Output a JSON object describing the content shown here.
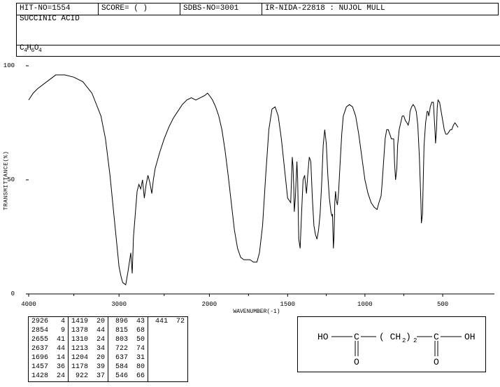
{
  "header": {
    "hit_no": "HIT-NO=1554",
    "score": "SCORE=   (   )",
    "sdbs": "SDBS-NO=3001",
    "ir": "IR-NIDA-22818 : NUJOL MULL",
    "compound": "SUCCINIC ACID",
    "formula": "C4H6O4",
    "formula_html": "C<sub>4</sub>H<sub>6</sub>O<sub>4</sub>"
  },
  "chart": {
    "type": "line",
    "ylabel": "TRANSMITTANCE(%)",
    "xlabel": "WAVENUMBER(-1)",
    "xlim": [
      4000,
      400
    ],
    "ylim": [
      0,
      100
    ],
    "xticks": [
      4000,
      3000,
      2000,
      1500,
      1000,
      500
    ],
    "yticks": [
      0,
      50,
      100
    ],
    "line_color": "#000000",
    "line_width": 1,
    "background_color": "#ffffff",
    "data": [
      [
        4000,
        85
      ],
      [
        3950,
        88
      ],
      [
        3900,
        90
      ],
      [
        3800,
        93
      ],
      [
        3700,
        96
      ],
      [
        3600,
        96
      ],
      [
        3500,
        95
      ],
      [
        3400,
        93
      ],
      [
        3300,
        88
      ],
      [
        3200,
        78
      ],
      [
        3150,
        68
      ],
      [
        3100,
        52
      ],
      [
        3050,
        32
      ],
      [
        3000,
        12
      ],
      [
        2980,
        8
      ],
      [
        2960,
        5
      ],
      [
        2926,
        4
      ],
      [
        2900,
        10
      ],
      [
        2870,
        18
      ],
      [
        2854,
        9
      ],
      [
        2840,
        25
      ],
      [
        2820,
        35
      ],
      [
        2800,
        45
      ],
      [
        2780,
        48
      ],
      [
        2760,
        46
      ],
      [
        2740,
        50
      ],
      [
        2720,
        42
      ],
      [
        2700,
        48
      ],
      [
        2680,
        52
      ],
      [
        2660,
        49
      ],
      [
        2637,
        44
      ],
      [
        2620,
        50
      ],
      [
        2600,
        55
      ],
      [
        2550,
        62
      ],
      [
        2500,
        68
      ],
      [
        2450,
        73
      ],
      [
        2400,
        77
      ],
      [
        2350,
        80
      ],
      [
        2300,
        83
      ],
      [
        2250,
        85
      ],
      [
        2200,
        86
      ],
      [
        2150,
        85
      ],
      [
        2100,
        86
      ],
      [
        2050,
        87
      ],
      [
        2020,
        88
      ],
      [
        2000,
        87
      ],
      [
        1980,
        85
      ],
      [
        1960,
        82
      ],
      [
        1940,
        78
      ],
      [
        1920,
        72
      ],
      [
        1900,
        63
      ],
      [
        1880,
        52
      ],
      [
        1860,
        40
      ],
      [
        1840,
        28
      ],
      [
        1820,
        20
      ],
      [
        1800,
        16
      ],
      [
        1780,
        15
      ],
      [
        1760,
        15
      ],
      [
        1740,
        15
      ],
      [
        1720,
        14
      ],
      [
        1696,
        14
      ],
      [
        1680,
        18
      ],
      [
        1660,
        30
      ],
      [
        1640,
        52
      ],
      [
        1620,
        72
      ],
      [
        1600,
        81
      ],
      [
        1580,
        82
      ],
      [
        1560,
        78
      ],
      [
        1540,
        68
      ],
      [
        1520,
        55
      ],
      [
        1500,
        42
      ],
      [
        1480,
        40
      ],
      [
        1470,
        60
      ],
      [
        1465,
        56
      ],
      [
        1460,
        46
      ],
      [
        1457,
        36
      ],
      [
        1450,
        42
      ],
      [
        1440,
        58
      ],
      [
        1435,
        50
      ],
      [
        1428,
        24
      ],
      [
        1419,
        20
      ],
      [
        1410,
        35
      ],
      [
        1400,
        50
      ],
      [
        1390,
        52
      ],
      [
        1378,
        44
      ],
      [
        1370,
        52
      ],
      [
        1360,
        60
      ],
      [
        1350,
        58
      ],
      [
        1340,
        42
      ],
      [
        1330,
        30
      ],
      [
        1320,
        26
      ],
      [
        1310,
        24
      ],
      [
        1300,
        28
      ],
      [
        1290,
        35
      ],
      [
        1280,
        48
      ],
      [
        1270,
        65
      ],
      [
        1260,
        72
      ],
      [
        1250,
        66
      ],
      [
        1240,
        52
      ],
      [
        1230,
        42
      ],
      [
        1220,
        36
      ],
      [
        1213,
        34
      ],
      [
        1210,
        35
      ],
      [
        1204,
        20
      ],
      [
        1200,
        25
      ],
      [
        1195,
        40
      ],
      [
        1190,
        45
      ],
      [
        1185,
        41
      ],
      [
        1178,
        39
      ],
      [
        1170,
        45
      ],
      [
        1160,
        58
      ],
      [
        1150,
        70
      ],
      [
        1140,
        78
      ],
      [
        1120,
        82
      ],
      [
        1100,
        83
      ],
      [
        1080,
        82
      ],
      [
        1060,
        78
      ],
      [
        1040,
        70
      ],
      [
        1020,
        60
      ],
      [
        1000,
        50
      ],
      [
        980,
        44
      ],
      [
        960,
        40
      ],
      [
        940,
        38
      ],
      [
        922,
        37
      ],
      [
        910,
        40
      ],
      [
        896,
        43
      ],
      [
        890,
        48
      ],
      [
        880,
        58
      ],
      [
        870,
        68
      ],
      [
        860,
        72
      ],
      [
        850,
        72
      ],
      [
        840,
        70
      ],
      [
        830,
        68
      ],
      [
        820,
        68
      ],
      [
        815,
        68
      ],
      [
        810,
        58
      ],
      [
        803,
        50
      ],
      [
        795,
        55
      ],
      [
        790,
        65
      ],
      [
        780,
        72
      ],
      [
        770,
        75
      ],
      [
        760,
        78
      ],
      [
        750,
        78
      ],
      [
        740,
        76
      ],
      [
        730,
        75
      ],
      [
        722,
        74
      ],
      [
        715,
        76
      ],
      [
        710,
        80
      ],
      [
        700,
        82
      ],
      [
        690,
        83
      ],
      [
        680,
        82
      ],
      [
        670,
        80
      ],
      [
        660,
        74
      ],
      [
        650,
        60
      ],
      [
        645,
        50
      ],
      [
        640,
        40
      ],
      [
        637,
        31
      ],
      [
        630,
        35
      ],
      [
        625,
        50
      ],
      [
        620,
        65
      ],
      [
        610,
        75
      ],
      [
        600,
        80
      ],
      [
        595,
        80
      ],
      [
        590,
        78
      ],
      [
        584,
        80
      ],
      [
        580,
        82
      ],
      [
        570,
        84
      ],
      [
        560,
        84
      ],
      [
        555,
        78
      ],
      [
        550,
        72
      ],
      [
        546,
        66
      ],
      [
        540,
        72
      ],
      [
        535,
        82
      ],
      [
        530,
        85
      ],
      [
        520,
        84
      ],
      [
        510,
        80
      ],
      [
        500,
        76
      ],
      [
        490,
        72
      ],
      [
        480,
        70
      ],
      [
        470,
        70
      ],
      [
        460,
        71
      ],
      [
        450,
        72
      ],
      [
        441,
        72
      ],
      [
        430,
        74
      ],
      [
        420,
        75
      ],
      [
        410,
        74
      ],
      [
        400,
        73
      ]
    ]
  },
  "peak_table": {
    "columns": [
      [
        [
          2926,
          4
        ],
        [
          2854,
          9
        ],
        [
          2655,
          41
        ],
        [
          2637,
          44
        ],
        [
          1696,
          14
        ],
        [
          1457,
          36
        ],
        [
          1428,
          24
        ]
      ],
      [
        [
          1419,
          20
        ],
        [
          1378,
          44
        ],
        [
          1310,
          24
        ],
        [
          1213,
          34
        ],
        [
          1204,
          20
        ],
        [
          1178,
          39
        ],
        [
          922,
          37
        ]
      ],
      [
        [
          896,
          43
        ],
        [
          815,
          68
        ],
        [
          803,
          50
        ],
        [
          722,
          74
        ],
        [
          637,
          31
        ],
        [
          584,
          80
        ],
        [
          546,
          66
        ]
      ],
      [
        [
          441,
          72
        ]
      ]
    ],
    "font_size": 10
  },
  "structure": {
    "description": "HO-C(=O)-(CH2)2-C(=O)-OH",
    "labels": {
      "ho_left": "HO",
      "c_left": "C",
      "ch2": "( CH",
      "ch2_sub": "2",
      "ch2_close": " )",
      "ch2_outer_sub": "2",
      "c_right": "C",
      "oh_right": "OH",
      "o_left": "O",
      "o_right": "O"
    }
  }
}
